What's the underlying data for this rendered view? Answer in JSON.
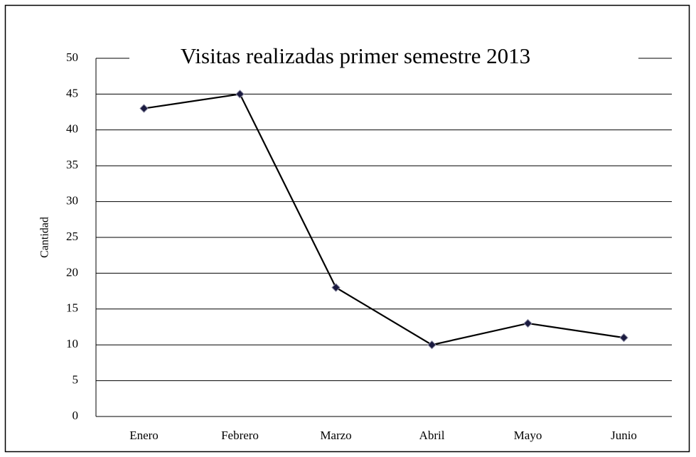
{
  "chart_data": {
    "type": "line",
    "title": "Visitas realizadas primer semestre  2013",
    "y_label": "Cantidad",
    "categories": [
      "Enero",
      "Febrero",
      "Marzo",
      "Abril",
      "Mayo",
      "Junio"
    ],
    "values": [
      43,
      45,
      18,
      10,
      13,
      11
    ],
    "color": "#000000",
    "marker_color": "#1a1a40",
    "ylim": [
      0,
      50
    ],
    "yticks": [
      0,
      5,
      10,
      15,
      20,
      25,
      30,
      35,
      40,
      45,
      50
    ],
    "grid": true
  }
}
